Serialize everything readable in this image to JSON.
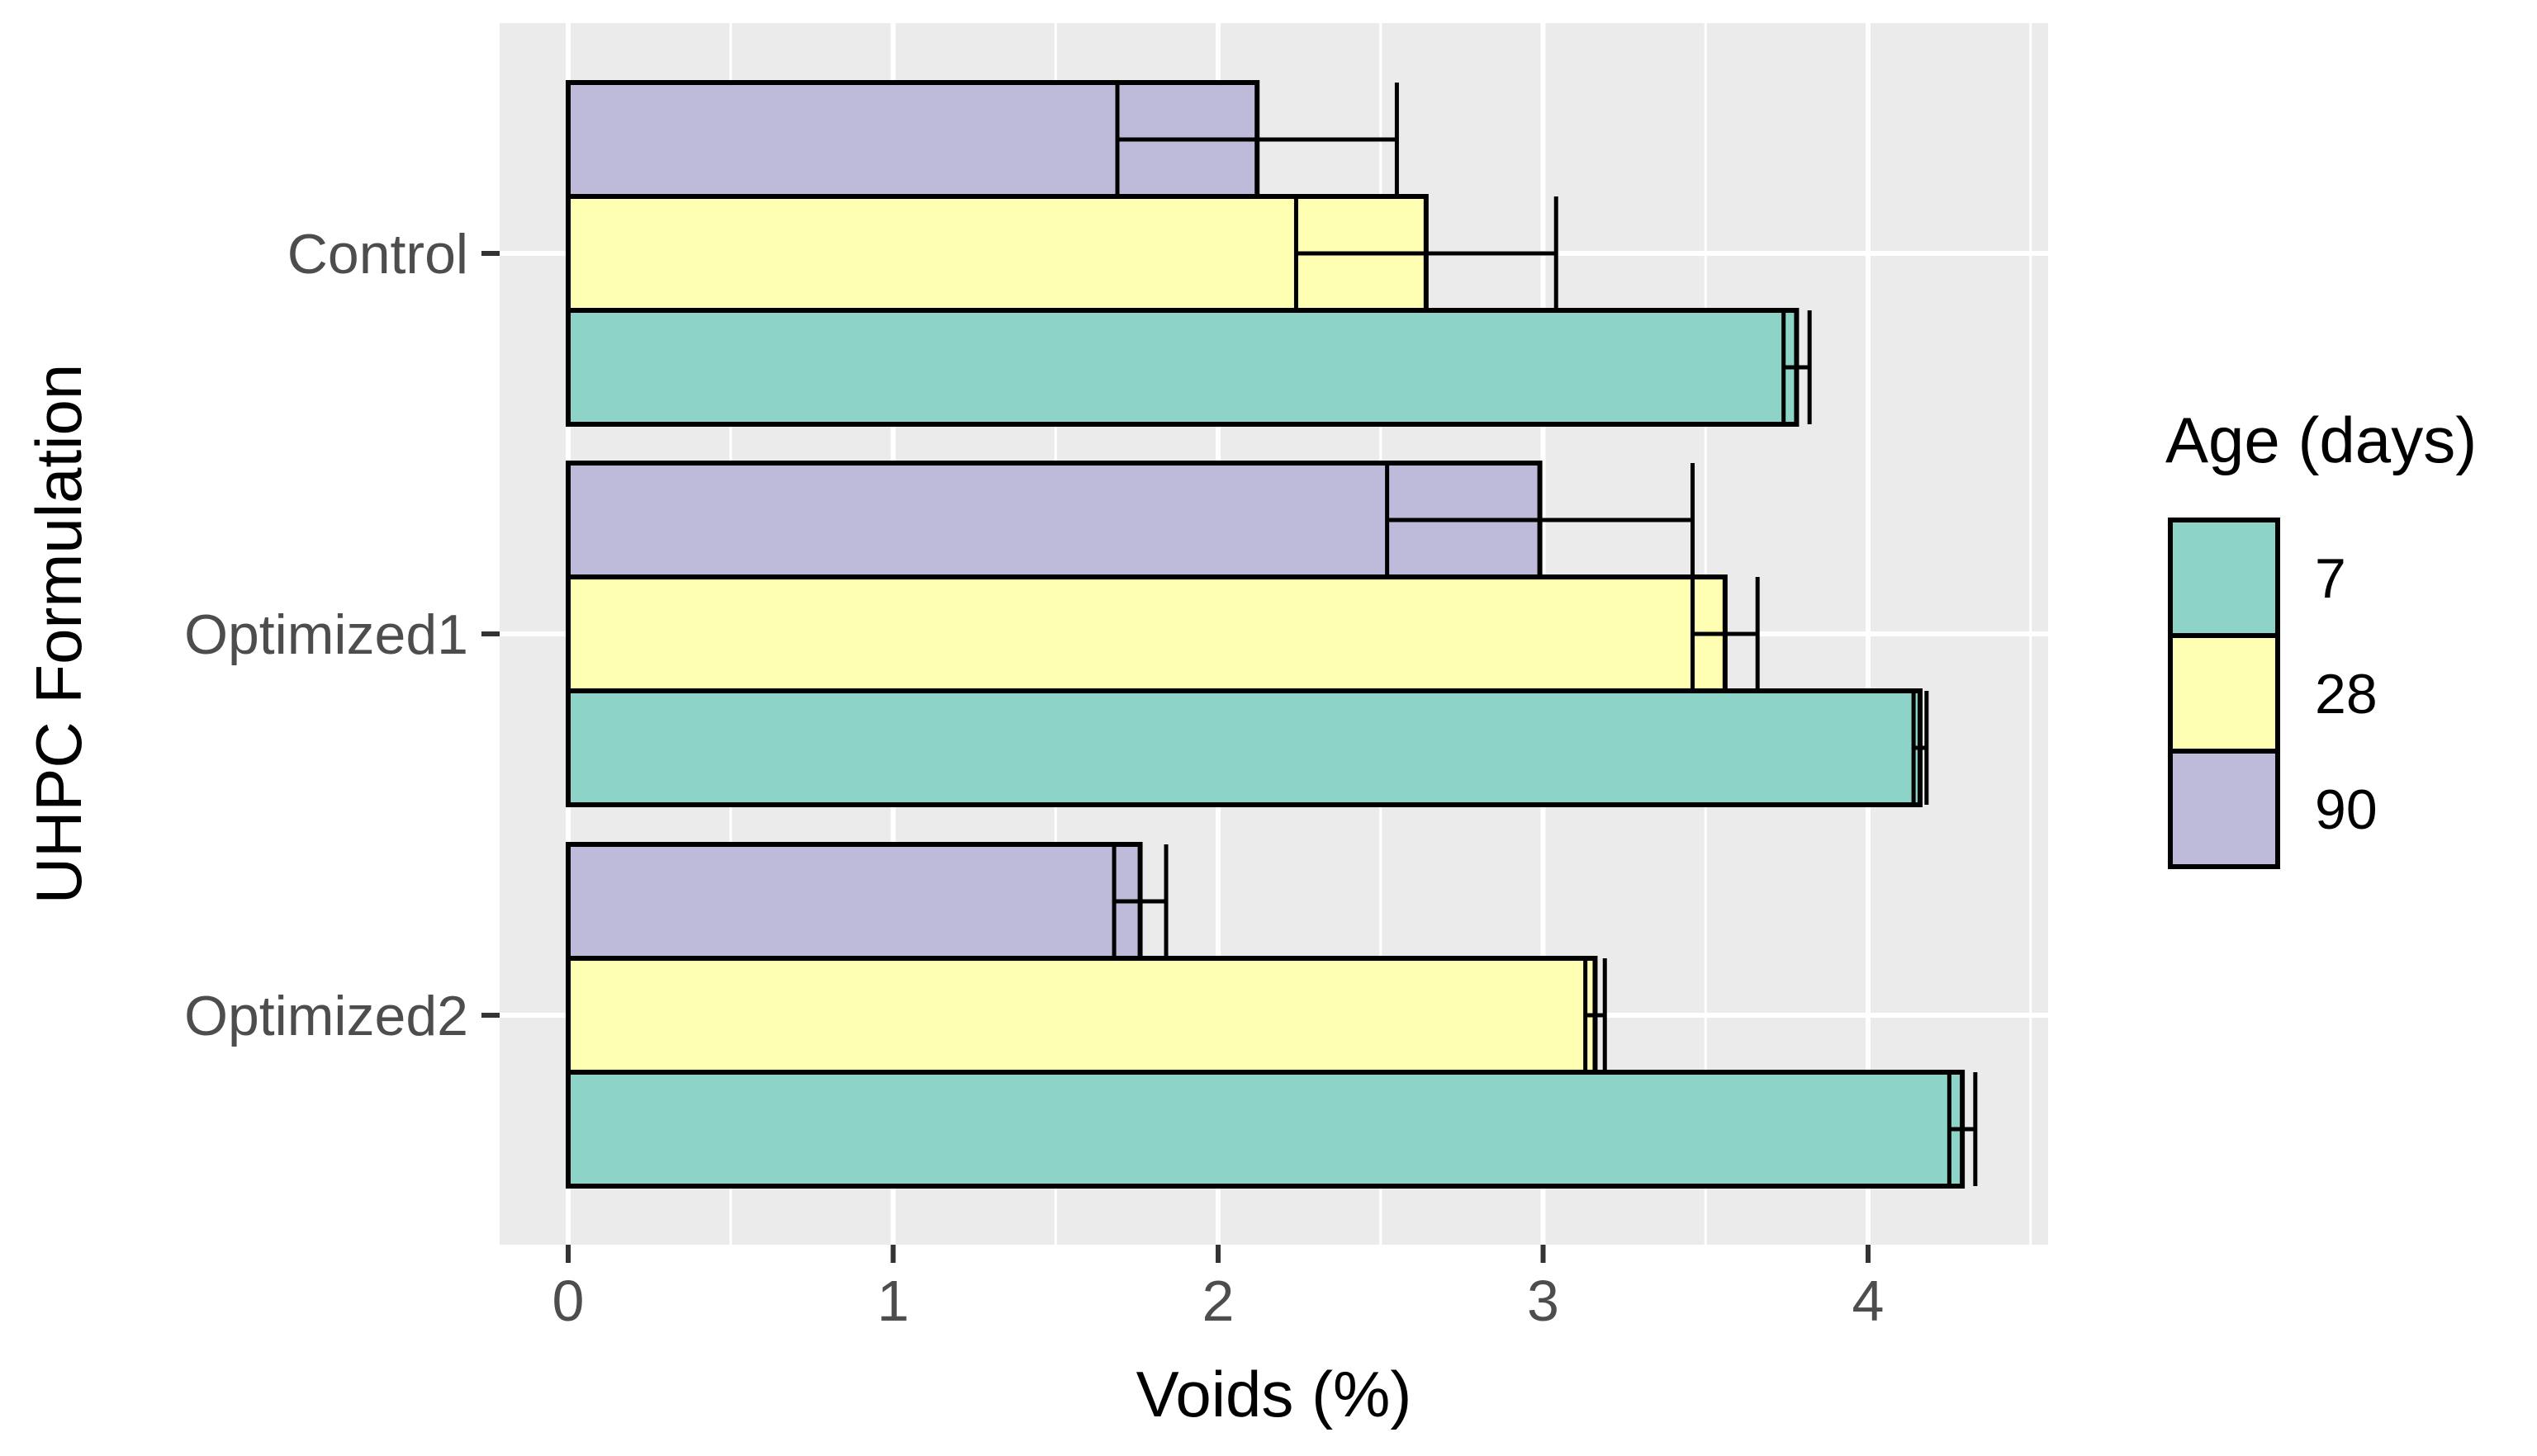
{
  "chart_data": {
    "type": "bar",
    "orientation": "horizontal",
    "title": "",
    "xlabel": "Voids (%)",
    "ylabel": "UHPC Formulation",
    "xlim": [
      -0.2,
      4.55
    ],
    "xticks": [
      0,
      1,
      2,
      3,
      4
    ],
    "tick_labels": [
      "0",
      "1",
      "2",
      "3",
      "4"
    ],
    "grid": true,
    "categories": [
      "Control",
      "Optimized1",
      "Optimized2"
    ],
    "series": [
      {
        "name": "7",
        "color": "#8dd3c7",
        "values": [
          3.78,
          4.16,
          4.29
        ],
        "errors": [
          0.04,
          0.02,
          0.04
        ]
      },
      {
        "name": "28",
        "color": "#ffffb3",
        "values": [
          2.64,
          3.56,
          3.16
        ],
        "errors": [
          0.4,
          0.1,
          0.03
        ]
      },
      {
        "name": "90",
        "color": "#bebada",
        "values": [
          2.12,
          2.99,
          1.76
        ],
        "errors": [
          0.43,
          0.47,
          0.08
        ]
      }
    ],
    "legend": {
      "title": "Age (days)",
      "position": "right"
    }
  }
}
